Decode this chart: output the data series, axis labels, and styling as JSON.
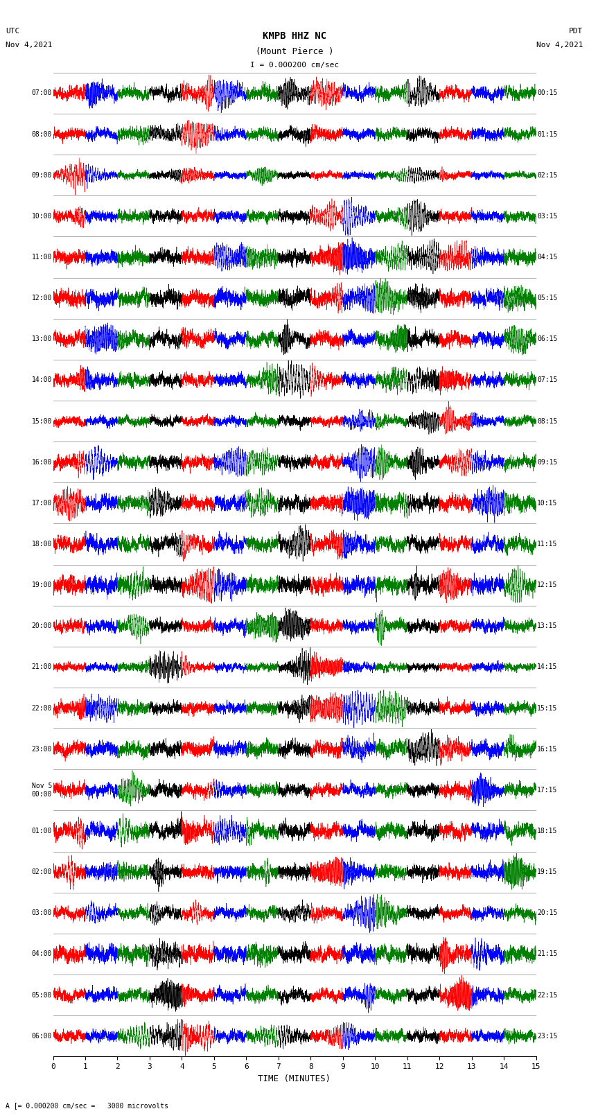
{
  "title_line1": "KMPB HHZ NC",
  "title_line2": "(Mount Pierce )",
  "scale_label": "I = 0.000200 cm/sec",
  "footer_label": "A [= 0.000200 cm/sec =   3000 microvolts",
  "left_header": "UTC\nNov 4,2021",
  "right_header": "PDT\nNov 4,2021",
  "xlabel": "TIME (MINUTES)",
  "left_times": [
    "07:00",
    "08:00",
    "09:00",
    "10:00",
    "11:00",
    "12:00",
    "13:00",
    "14:00",
    "15:00",
    "16:00",
    "17:00",
    "18:00",
    "19:00",
    "20:00",
    "21:00",
    "22:00",
    "23:00",
    "Nov 5\n00:00",
    "01:00",
    "02:00",
    "03:00",
    "04:00",
    "05:00",
    "06:00"
  ],
  "right_times": [
    "00:15",
    "01:15",
    "02:15",
    "03:15",
    "04:15",
    "05:15",
    "06:15",
    "07:15",
    "08:15",
    "09:15",
    "10:15",
    "11:15",
    "12:15",
    "13:15",
    "14:15",
    "15:15",
    "16:15",
    "17:15",
    "18:15",
    "19:15",
    "20:15",
    "21:15",
    "22:15",
    "23:15"
  ],
  "n_rows": 24,
  "n_minutes": 15,
  "sample_rate": 100,
  "colors_cycle": [
    "red",
    "blue",
    "green",
    "black"
  ],
  "bg_color": "white",
  "fig_width": 8.5,
  "fig_height": 16.13,
  "dpi": 100
}
